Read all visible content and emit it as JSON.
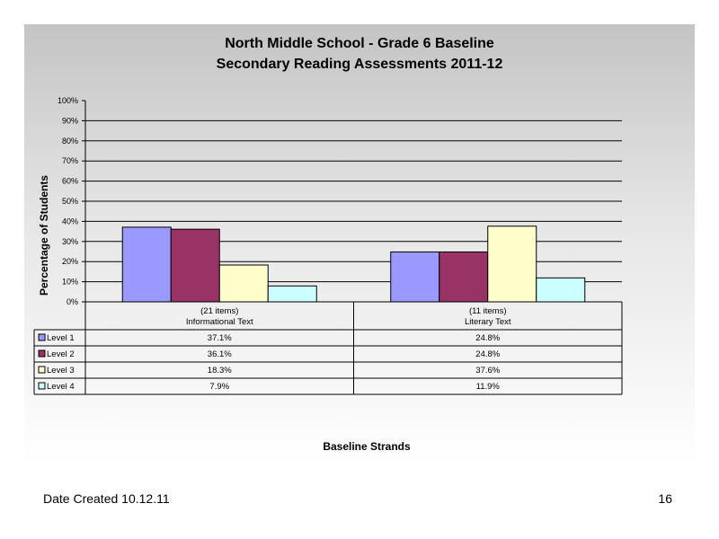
{
  "slide": {
    "date_created": "Date Created  10.12.11",
    "page_number": "16"
  },
  "chart_data": {
    "type": "bar",
    "title": "North Middle School - Grade 6 Baseline",
    "subtitle": "Secondary Reading Assessments 2011-12",
    "xlabel": "Baseline Strands",
    "ylabel": "Percentage of Students",
    "ylim": [
      0,
      100
    ],
    "yticks": [
      "0%",
      "10%",
      "20%",
      "30%",
      "40%",
      "50%",
      "60%",
      "70%",
      "80%",
      "90%",
      "100%"
    ],
    "grid": true,
    "legend": "data-table",
    "categories": [
      {
        "count": "(21 items)",
        "name": "Informational Text"
      },
      {
        "count": "(11 items)",
        "name": "Literary Text"
      }
    ],
    "series": [
      {
        "name": "Level 1",
        "color": "#9999ff",
        "values": [
          37.1,
          24.8
        ],
        "labels": [
          "37.1%",
          "24.8%"
        ]
      },
      {
        "name": "Level 2",
        "color": "#993366",
        "values": [
          36.1,
          24.8
        ],
        "labels": [
          "36.1%",
          "24.8%"
        ]
      },
      {
        "name": "Level 3",
        "color": "#ffffcc",
        "values": [
          18.3,
          37.6
        ],
        "labels": [
          "18.3%",
          "37.6%"
        ]
      },
      {
        "name": "Level 4",
        "color": "#ccffff",
        "values": [
          7.9,
          11.9
        ],
        "labels": [
          "7.9%",
          "11.9%"
        ]
      }
    ]
  }
}
